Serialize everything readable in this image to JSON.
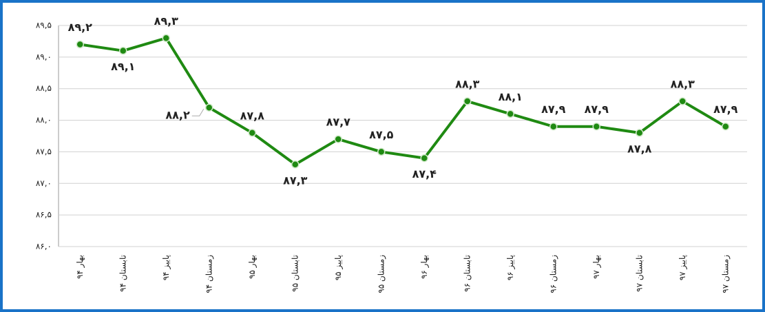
{
  "chart_data": {
    "type": "line",
    "categories": [
      "بهار ۹۴",
      "تابستان ۹۴",
      "پاییز ۹۴",
      "زمستان ۹۴",
      "بهار ۹۵",
      "تابستان ۹۵",
      "پاییز ۹۵",
      "زمستان ۹۵",
      "بهار ۹۶",
      "تابستان ۹۶",
      "پاییز ۹۶",
      "زمستان ۹۶",
      "بهار ۹۷",
      "تابستان ۹۷",
      "پاییز ۹۷",
      "زمستان ۹۷"
    ],
    "values": [
      89.2,
      89.1,
      89.3,
      88.2,
      87.8,
      87.3,
      87.7,
      87.5,
      87.4,
      88.3,
      88.1,
      87.9,
      87.9,
      87.8,
      88.3,
      87.9
    ],
    "value_labels": [
      "۸۹,۲",
      "۸۹,۱",
      "۸۹,۳",
      "۸۸,۲",
      "۸۷,۸",
      "۸۷,۳",
      "۸۷,۷",
      "۸۷,۵",
      "۸۷,۴",
      "۸۸,۳",
      "۸۸,۱",
      "۸۷,۹",
      "۸۷,۹",
      "۸۷,۸",
      "۸۸,۳",
      "۸۷,۹"
    ],
    "color": "#1f8a12",
    "ylim": [
      86,
      89.5
    ],
    "yticks": [
      {
        "value": 86,
        "label": "۸۶,۰"
      },
      {
        "value": 86.5,
        "label": "۸۶,۵"
      },
      {
        "value": 87,
        "label": "۸۷,۰"
      },
      {
        "value": 87.5,
        "label": "۸۷,۵"
      },
      {
        "value": 88,
        "label": "۸۸,۰"
      },
      {
        "value": 88.5,
        "label": "۸۸,۵"
      },
      {
        "value": 89,
        "label": "۸۹,۰"
      },
      {
        "value": 89.5,
        "label": "۸۹,۵"
      }
    ],
    "grid": true
  }
}
